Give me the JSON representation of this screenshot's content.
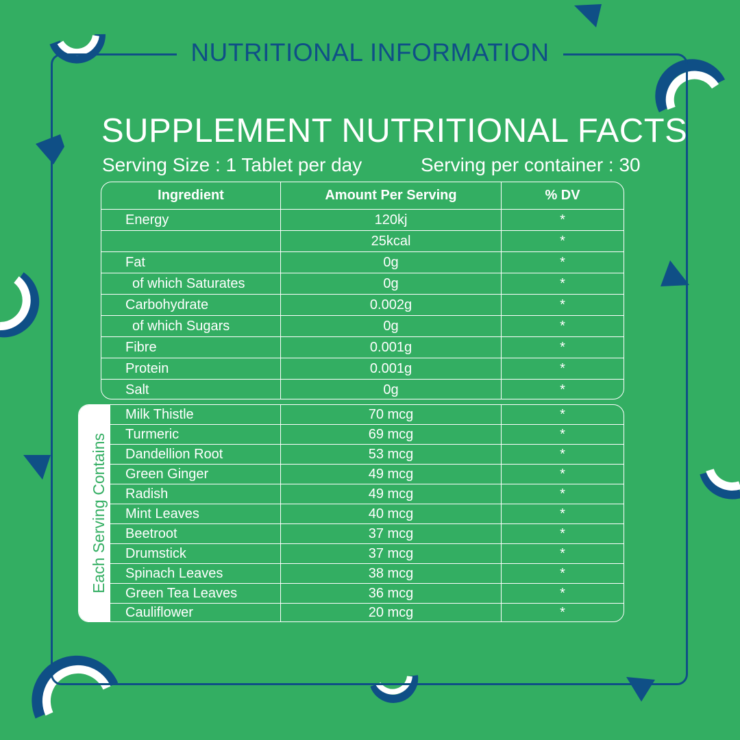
{
  "header": {
    "title": "NUTRITIONAL INFORMATION"
  },
  "facts": {
    "title": "SUPPLEMENT NUTRITIONAL FACTS",
    "serving_size": "Serving Size : 1 Tablet per day",
    "servings_per_container": "Serving per container : 30"
  },
  "nutrition_table": {
    "headers": [
      "Ingredient",
      "Amount Per Serving",
      "% DV"
    ],
    "rows": [
      {
        "name": "Energy",
        "amount": "120kj",
        "dv": "*"
      },
      {
        "name": "",
        "amount": "25kcal",
        "dv": "*"
      },
      {
        "name": "Fat",
        "amount": "0g",
        "dv": "*"
      },
      {
        "name": "of which Saturates",
        "amount": "0g",
        "dv": "*"
      },
      {
        "name": "Carbohydrate",
        "amount": "0.002g",
        "dv": "*"
      },
      {
        "name": "of which Sugars",
        "amount": "0g",
        "dv": "*"
      },
      {
        "name": "Fibre",
        "amount": "0.001g",
        "dv": "*"
      },
      {
        "name": "Protein",
        "amount": "0.001g",
        "dv": "*"
      },
      {
        "name": "Salt",
        "amount": "0g",
        "dv": "*"
      }
    ]
  },
  "ingredients_table": {
    "side_label": "Each Serving Contains",
    "rows": [
      {
        "name": "Milk Thistle",
        "amount": "70 mcg",
        "dv": "*"
      },
      {
        "name": "Turmeric",
        "amount": "69 mcg",
        "dv": "*"
      },
      {
        "name": "Dandellion Root",
        "amount": "53 mcg",
        "dv": "*"
      },
      {
        "name": "Green Ginger",
        "amount": "49 mcg",
        "dv": "*"
      },
      {
        "name": "Radish",
        "amount": "49 mcg",
        "dv": "*"
      },
      {
        "name": "Mint Leaves",
        "amount": "40 mcg",
        "dv": "*"
      },
      {
        "name": "Beetroot",
        "amount": "37 mcg",
        "dv": "*"
      },
      {
        "name": "Drumstick",
        "amount": "37 mcg",
        "dv": "*"
      },
      {
        "name": "Spinach Leaves",
        "amount": "38 mcg",
        "dv": "*"
      },
      {
        "name": "Green Tea Leaves",
        "amount": "36 mcg",
        "dv": "*"
      },
      {
        "name": "Cauliflower",
        "amount": "20 mcg",
        "dv": "*"
      }
    ]
  },
  "colors": {
    "background": "#33ae62",
    "accent": "#0f4f86",
    "text": "#ffffff"
  }
}
